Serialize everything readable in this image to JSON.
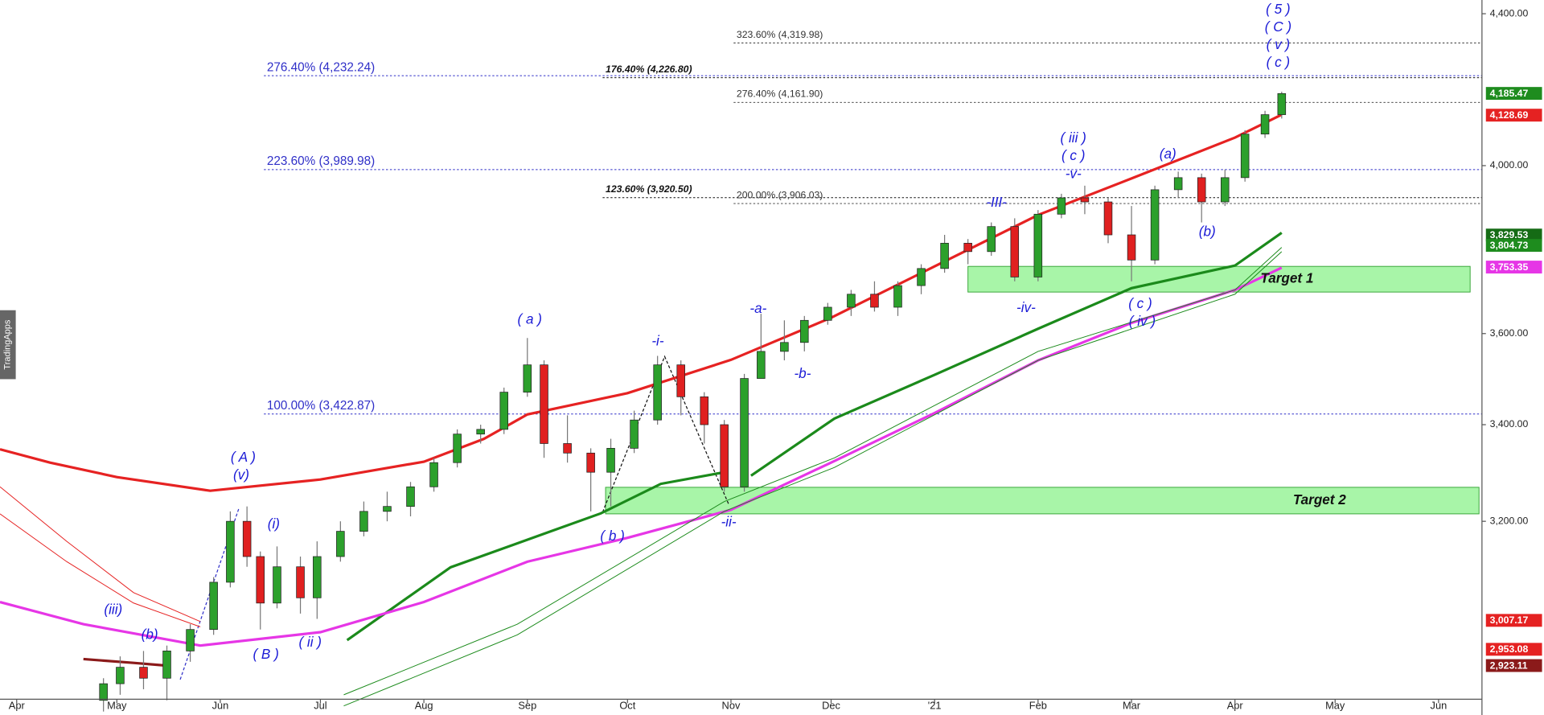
{
  "chart_data": {
    "type": "candlestick",
    "log_scale": true,
    "xlim": [
      -5,
      439
    ],
    "ylim": [
      2862,
      4438
    ],
    "xticks": [
      {
        "value": 0,
        "label": "Apr"
      },
      {
        "value": 30,
        "label": "May"
      },
      {
        "value": 61,
        "label": "Jun"
      },
      {
        "value": 91,
        "label": "Jul"
      },
      {
        "value": 122,
        "label": "Aug"
      },
      {
        "value": 153,
        "label": "Sep"
      },
      {
        "value": 183,
        "label": "Oct"
      },
      {
        "value": 214,
        "label": "Nov"
      },
      {
        "value": 244,
        "label": "Dec"
      },
      {
        "value": 275,
        "label": "'21"
      },
      {
        "value": 306,
        "label": "Feb"
      },
      {
        "value": 334,
        "label": "Mar"
      },
      {
        "value": 365,
        "label": "Apr"
      },
      {
        "value": 395,
        "label": "May"
      },
      {
        "value": 426,
        "label": "Jun"
      }
    ],
    "yticks": [
      {
        "value": 3200,
        "label": "3,200.00"
      },
      {
        "value": 3400,
        "label": "3,400.00"
      },
      {
        "value": 3600,
        "label": "3,600.00"
      },
      {
        "value": 4000,
        "label": "4,000.00"
      },
      {
        "value": 4400,
        "label": "4,400.00"
      }
    ],
    "up_color": "#2ca02c",
    "down_color": "#e02020",
    "x": [
      26,
      31,
      38,
      45,
      52,
      59,
      64,
      69,
      73,
      78,
      85,
      90,
      97,
      104,
      111,
      118,
      125,
      132,
      139,
      146,
      153,
      158,
      165,
      172,
      178,
      185,
      192,
      199,
      206,
      212,
      218,
      223,
      230,
      236,
      243,
      250,
      257,
      264,
      271,
      278,
      285,
      292,
      299,
      306,
      313,
      320,
      327,
      334,
      341,
      348,
      355,
      362,
      368,
      374,
      379
    ],
    "open": [
      2860,
      2890,
      2920,
      2900,
      2950,
      2990,
      3080,
      3200,
      3130,
      3040,
      3110,
      3050,
      3130,
      3180,
      3220,
      3230,
      3270,
      3320,
      3380,
      3390,
      3470,
      3530,
      3360,
      3340,
      3300,
      3350,
      3410,
      3530,
      3460,
      3400,
      3270,
      3500,
      3560,
      3580,
      3630,
      3660,
      3690,
      3660,
      3710,
      3750,
      3810,
      3790,
      3850,
      3730,
      3880,
      3920,
      3910,
      3830,
      3770,
      3940,
      3970,
      3910,
      3970,
      4080,
      4130
    ],
    "high": [
      2900,
      2940,
      2950,
      2960,
      3000,
      3090,
      3220,
      3230,
      3140,
      3150,
      3130,
      3160,
      3200,
      3240,
      3260,
      3280,
      3330,
      3390,
      3400,
      3480,
      3590,
      3540,
      3420,
      3350,
      3370,
      3430,
      3550,
      3540,
      3470,
      3410,
      3510,
      3645,
      3630,
      3640,
      3670,
      3700,
      3720,
      3720,
      3760,
      3830,
      3820,
      3860,
      3870,
      3890,
      3930,
      3950,
      3920,
      3900,
      3950,
      3985,
      3980,
      3990,
      4090,
      4140,
      4190
    ],
    "low": [
      2840,
      2870,
      2880,
      2860,
      2930,
      2980,
      3070,
      3110,
      2990,
      3030,
      3020,
      3010,
      3120,
      3170,
      3200,
      3210,
      3260,
      3310,
      3360,
      3380,
      3460,
      3330,
      3320,
      3220,
      3230,
      3340,
      3400,
      3420,
      3360,
      3260,
      3260,
      3500,
      3540,
      3560,
      3620,
      3640,
      3650,
      3640,
      3690,
      3740,
      3760,
      3780,
      3720,
      3720,
      3870,
      3880,
      3810,
      3720,
      3760,
      3920,
      3860,
      3900,
      3960,
      4070,
      4120
    ],
    "close": [
      2890,
      2920,
      2900,
      2950,
      2990,
      3080,
      3200,
      3130,
      3040,
      3110,
      3050,
      3130,
      3180,
      3220,
      3230,
      3270,
      3320,
      3380,
      3390,
      3470,
      3530,
      3360,
      3340,
      3300,
      3350,
      3410,
      3530,
      3460,
      3400,
      3270,
      3500,
      3560,
      3580,
      3630,
      3660,
      3690,
      3660,
      3710,
      3750,
      3810,
      3790,
      3850,
      3730,
      3880,
      3920,
      3910,
      3830,
      3770,
      3940,
      3970,
      3910,
      3970,
      4080,
      4130,
      4185
    ],
    "lines": [
      {
        "color": "#e62222",
        "weight": "thick",
        "x": [
          -5,
          10,
          30,
          58,
          91,
          122,
          140,
          153,
          183,
          214,
          244,
          275,
          306,
          334,
          365,
          379
        ],
        "values": [
          3348,
          3320,
          3290,
          3262,
          3285,
          3322,
          3370,
          3422,
          3468,
          3541,
          3636,
          3755,
          3878,
          3968,
          4071,
          4130
        ]
      },
      {
        "color": "#1b8a1b",
        "weight": "thick",
        "x": [
          99,
          130,
          160,
          175,
          193,
          212,
          216,
          220,
          245,
          275,
          306,
          334,
          365,
          379
        ],
        "values": [
          2970,
          3109,
          3180,
          3216,
          3276,
          3300,
          null,
          3293,
          3413,
          3508,
          3611,
          3704,
          3757,
          3835
        ]
      },
      {
        "color": "#e636e6",
        "weight": "thick",
        "x": [
          -5,
          20,
          55,
          91,
          122,
          153,
          183,
          214,
          244,
          275,
          306,
          334,
          365,
          379
        ],
        "values": [
          3042,
          3000,
          2960,
          2985,
          3042,
          3120,
          3167,
          3223,
          3320,
          3425,
          3540,
          3624,
          3700,
          3752
        ]
      },
      {
        "color": "#e62222",
        "weight": "thin",
        "x": [
          -5,
          15,
          35,
          55
        ],
        "values": [
          3270,
          3160,
          3060,
          3005
        ]
      },
      {
        "color": "#e62222",
        "weight": "thin",
        "x": [
          -5,
          15,
          35,
          55
        ],
        "values": [
          3215,
          3120,
          3040,
          2995
        ]
      },
      {
        "color": "#1b8a1b",
        "weight": "thin",
        "x": [
          98,
          150,
          212,
          245,
          306,
          365,
          379
        ],
        "values": [
          2870,
          3000,
          3240,
          3330,
          3560,
          3700,
          3800
        ]
      },
      {
        "color": "#1b8a1b",
        "weight": "thin",
        "x": [
          98,
          150,
          212,
          245,
          306,
          365,
          379
        ],
        "values": [
          2850,
          2980,
          3220,
          3310,
          3540,
          3690,
          3790
        ]
      },
      {
        "color": "#8b1a1a",
        "weight": "thick",
        "x": [
          20,
          35,
          45
        ],
        "values": [
          2935,
          2928,
          2923
        ]
      }
    ],
    "levels": [
      {
        "label": "323.60% (4,319.98)",
        "value": 4319.98,
        "color": "#333333"
      },
      {
        "label": "276.40% (4,232.24)",
        "value": 4232.24,
        "color": "#2f2fc8"
      },
      {
        "label": "176.40% (4,226.80)",
        "value": 4226.8,
        "color": "#111111"
      },
      {
        "label": "276.40% (4,161.90)",
        "value": 4161.9,
        "color": "#333333"
      },
      {
        "label": "223.60% (3,989.98)",
        "value": 3989.98,
        "color": "#2f2fc8"
      },
      {
        "label": "123.60% (3,920.50)",
        "value": 3920.5,
        "color": "#111111"
      },
      {
        "label": "200.00% (3,906.03)",
        "value": 3906.03,
        "color": "#333333"
      },
      {
        "label": "100.00% (3,422.87)",
        "value": 3422.87,
        "color": "#2f2fc8"
      }
    ],
    "zones": [
      {
        "label": "Target 1",
        "low": 3695,
        "high": 3755
      },
      {
        "label": "Target 2",
        "low": 3215,
        "high": 3269
      }
    ],
    "price_labels": [
      {
        "value": 4185.47,
        "label": "4,185.47",
        "color": "#1e8c1e"
      },
      {
        "value": 4128.69,
        "label": "4,128.69",
        "color": "#e52222"
      },
      {
        "value": 3829.53,
        "label": "3,829.53",
        "color": "#156b15"
      },
      {
        "value": 3804.73,
        "label": "3,804.73",
        "color": "#1e8c1e"
      },
      {
        "value": 3753.35,
        "label": "3,753.35",
        "color": "#e636e6"
      },
      {
        "value": 3007.17,
        "label": "3,007.17",
        "color": "#e52222"
      },
      {
        "value": 2953.08,
        "label": "2,953.08",
        "color": "#e52222"
      },
      {
        "value": 2923.11,
        "label": "2,923.11",
        "color": "#8b1a1a"
      }
    ],
    "annotations": [
      "( 5 )",
      "( C )",
      "( v )",
      "( c )",
      "(iii)",
      "(b)",
      "( A )",
      "(v)",
      "(i)",
      "( B )",
      "( ii )",
      "( a )",
      "( b )",
      "-i-",
      "-ii-",
      "-a-",
      "-b-",
      "-III-",
      "( iii )",
      "( c )",
      "-v-",
      "-iv-",
      "(a)",
      "(b)",
      "( c )",
      "( iv )"
    ],
    "side_label": "TradingApps"
  }
}
